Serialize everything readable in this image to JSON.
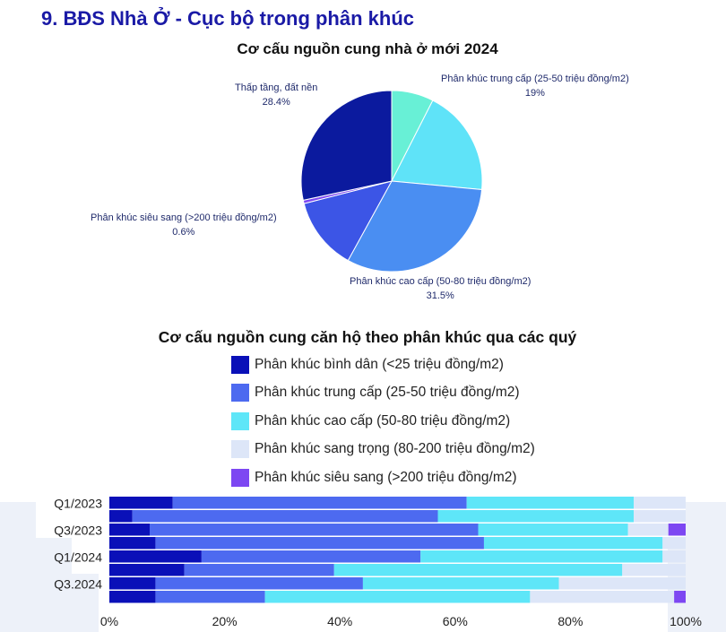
{
  "page": {
    "title": "9. BĐS Nhà Ở - Cục bộ trong phân khúc"
  },
  "colors": {
    "title": "#1a1aa6",
    "binh_dan": "#0a10b8",
    "trung_cap": "#4d6af0",
    "cao_cap": "#5ee6f8",
    "sang_trong": "#dde6f8",
    "sieu_sang": "#7d47f2",
    "pie_binh_dan": "#0b1ba0",
    "pie_trung_cap": "#5fe3f8",
    "pie_cao_cap": "#4a8ef2",
    "pie_sieu_sang": "#3c52e0",
    "pie_thap_tang": "#0a1a98",
    "pie_small": "#67f0dc"
  },
  "chart_data": [
    {
      "type": "pie",
      "title": "Cơ cấu nguồn cung nhà ở mới 2024",
      "slices": [
        {
          "label": "",
          "value": 7.5,
          "value_text": "",
          "color": "#68f0d6"
        },
        {
          "label": "Phân khúc trung cấp (25-50 triệu đồng/m2)",
          "value": 19,
          "value_text": "19%",
          "color": "#5fe3f8"
        },
        {
          "label": "Phân khúc cao cấp (50-80 triệu đồng/m2)",
          "value": 31.5,
          "value_text": "31.5%",
          "color": "#4a8ef2"
        },
        {
          "label": "",
          "value": 13,
          "value_text": "",
          "color": "#3c55e6"
        },
        {
          "label": "Phân khúc siêu sang (>200 triệu đồng/m2)",
          "value": 0.6,
          "value_text": "0.6%",
          "color": "#7d47f2"
        },
        {
          "label": "Thấp tầng, đất nền",
          "value": 28.4,
          "value_text": "28.4%",
          "color": "#0b1a9e"
        }
      ]
    },
    {
      "type": "bar",
      "orientation": "horizontal",
      "stacked": true,
      "title": "Cơ cấu nguồn cung căn hộ theo phân khúc qua các quý",
      "categories": [
        "Q1/2023",
        "",
        "Q3/2023",
        "",
        "Q1/2024",
        "",
        "Q3.2024",
        ""
      ],
      "x_ticks": [
        "0%",
        "20%",
        "40%",
        "60%",
        "80%",
        "100%"
      ],
      "xlim": [
        0,
        100
      ],
      "legend_position": "top",
      "series": [
        {
          "name": "Phân khúc bình dân (<25 triệu đồng/m2)",
          "color": "#0a10b8",
          "values": [
            11,
            4,
            7,
            8,
            16,
            13,
            8,
            8
          ]
        },
        {
          "name": "Phân khúc trung cấp (25-50 triệu đồng/m2)",
          "color": "#4d6af0",
          "values": [
            51,
            53,
            57,
            57,
            38,
            26,
            36,
            19
          ]
        },
        {
          "name": "Phân khúc cao cấp (50-80 triệu đồng/m2)",
          "color": "#5ee6f8",
          "values": [
            29,
            34,
            26,
            31,
            42,
            50,
            34,
            46
          ]
        },
        {
          "name": "Phân khúc sang trọng (80-200 triệu đồng/m2)",
          "color": "#dde6f8",
          "values": [
            9,
            9,
            7,
            4,
            4,
            11,
            22,
            25
          ]
        },
        {
          "name": "Phân khúc siêu sang (>200 triệu đồng/m2)",
          "color": "#7d47f2",
          "values": [
            0,
            0,
            3,
            0,
            0,
            0,
            0,
            2
          ]
        }
      ]
    }
  ]
}
